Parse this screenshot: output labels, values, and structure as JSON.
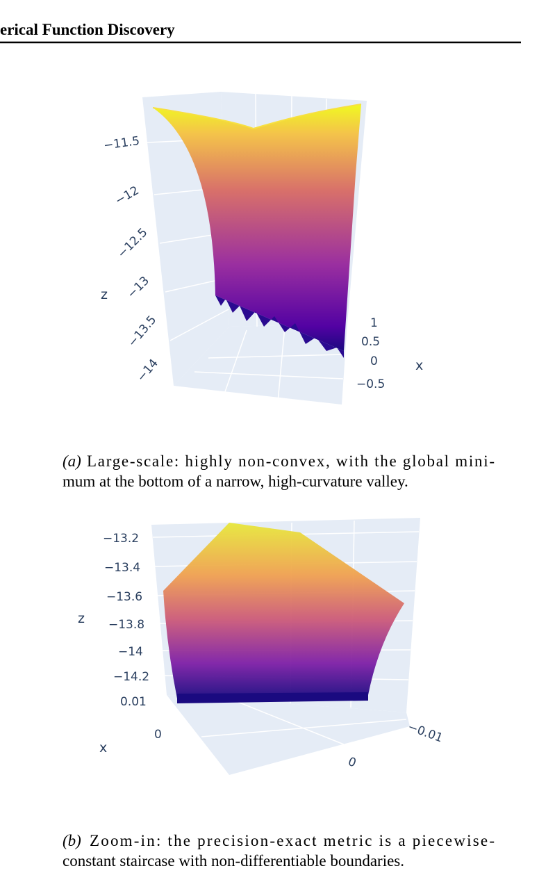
{
  "header": {
    "title": "erical Function Discovery"
  },
  "figures": [
    {
      "z_axis_title": "z",
      "z_ticks": [
        "−11.5",
        "−12",
        "−12.5",
        "−13",
        "−13.5",
        "−14"
      ],
      "x_axis_title": "x",
      "x_ticks": [
        "1",
        "0.5",
        "0",
        "−0.5"
      ],
      "caption": {
        "label": "(a)",
        "lines": [
          "Large-scale: highly non-convex, with the global mini-",
          "mum at the bottom of a narrow, high-curvature valley."
        ]
      }
    },
    {
      "z_axis_title": "z",
      "z_ticks": [
        "−13.2",
        "−13.4",
        "−13.6",
        "−13.8",
        "−14",
        "−14.2"
      ],
      "x_axis_title": "x",
      "x_ticks": [
        "0.01",
        "0"
      ],
      "y_ticks": [
        "−0.01",
        "0"
      ],
      "caption": {
        "label": "(b)",
        "lines": [
          "Zoom-in: the precision-exact metric is a piecewise-",
          "constant staircase with non-differentiable boundaries."
        ]
      }
    }
  ]
}
